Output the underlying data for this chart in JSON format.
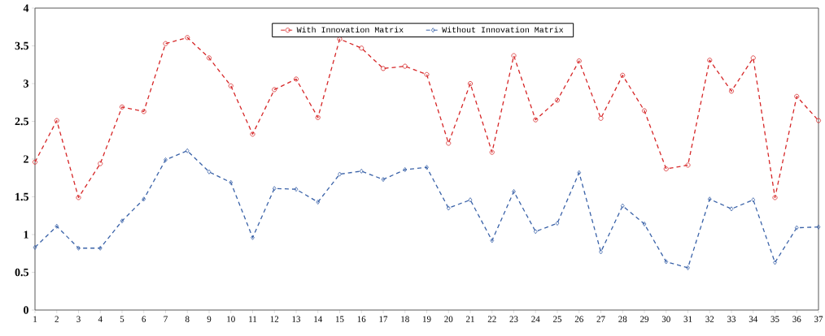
{
  "chart_data": {
    "type": "line",
    "categories": [
      "1",
      "2",
      "3",
      "4",
      "5",
      "6",
      "7",
      "8",
      "9",
      "10",
      "11",
      "12",
      "13",
      "14",
      "15",
      "16",
      "17",
      "18",
      "19",
      "20",
      "21",
      "22",
      "23",
      "24",
      "25",
      "26",
      "27",
      "28",
      "29",
      "30",
      "31",
      "32",
      "33",
      "34",
      "35",
      "36",
      "37"
    ],
    "ylim": [
      0,
      4
    ],
    "yticks": [
      0,
      0.5,
      1,
      1.5,
      2,
      2.5,
      3,
      3.5,
      4
    ],
    "grid": false,
    "legend": "top",
    "line_style": "dashed",
    "series": [
      {
        "name": "With Innovation Matrix",
        "color": "#d62728",
        "marker": "circle",
        "values": [
          1.96,
          2.51,
          1.49,
          1.94,
          2.69,
          2.63,
          3.53,
          3.61,
          3.34,
          2.97,
          2.33,
          2.92,
          3.06,
          2.55,
          3.59,
          3.47,
          3.2,
          3.23,
          3.12,
          2.21,
          3.0,
          2.09,
          3.37,
          2.52,
          2.78,
          3.3,
          2.54,
          3.11,
          2.64,
          1.87,
          1.92,
          3.31,
          2.9,
          3.34,
          1.49,
          2.83,
          2.51
        ]
      },
      {
        "name": "Without Innovation Matrix",
        "color": "#3a62a8",
        "marker": "diamond",
        "values": [
          0.83,
          1.11,
          0.82,
          0.82,
          1.18,
          1.47,
          1.99,
          2.11,
          1.83,
          1.69,
          0.96,
          1.61,
          1.6,
          1.43,
          1.8,
          1.84,
          1.73,
          1.86,
          1.89,
          1.35,
          1.46,
          0.92,
          1.57,
          1.04,
          1.15,
          1.82,
          0.77,
          1.38,
          1.14,
          0.64,
          0.56,
          1.47,
          1.34,
          1.46,
          0.63,
          1.09,
          1.1
        ]
      }
    ]
  }
}
